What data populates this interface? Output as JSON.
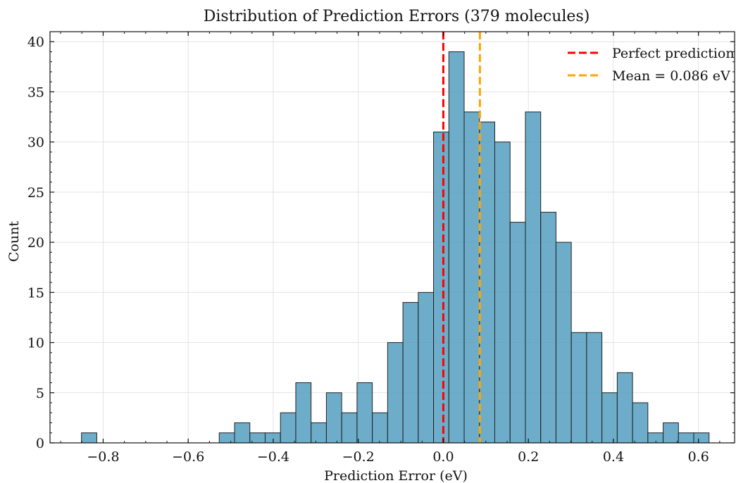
{
  "chart_data": {
    "type": "bar",
    "title": "Distribution of Prediction Errors (379 molecules)",
    "xlabel": "Prediction Error (eV)",
    "ylabel": "Count",
    "xlim": [
      -0.925,
      0.685
    ],
    "ylim": [
      0,
      41
    ],
    "xticks": [
      -0.8,
      -0.6,
      -0.4,
      -0.2,
      0.0,
      0.2,
      0.4,
      0.6
    ],
    "xtick_labels": [
      "−0.8",
      "−0.6",
      "−0.4",
      "−0.2",
      "0.0",
      "0.2",
      "0.4",
      "0.6"
    ],
    "yticks": [
      0,
      5,
      10,
      15,
      20,
      25,
      30,
      35,
      40
    ],
    "ytick_labels": [
      "0",
      "5",
      "10",
      "15",
      "20",
      "25",
      "30",
      "35",
      "40"
    ],
    "grid": true,
    "bin_edges": [
      -0.851,
      -0.815,
      -0.779,
      -0.743,
      -0.707,
      -0.671,
      -0.635,
      -0.599,
      -0.563,
      -0.527,
      -0.491,
      -0.455,
      -0.419,
      -0.383,
      -0.347,
      -0.311,
      -0.275,
      -0.239,
      -0.203,
      -0.167,
      -0.131,
      -0.095,
      -0.059,
      -0.023,
      0.013,
      0.049,
      0.085,
      0.121,
      0.157,
      0.193,
      0.229,
      0.265,
      0.301,
      0.337,
      0.373,
      0.409,
      0.445,
      0.481,
      0.517,
      0.553,
      0.589,
      0.625
    ],
    "counts": [
      1,
      0,
      0,
      0,
      0,
      0,
      0,
      0,
      0,
      1,
      2,
      1,
      1,
      3,
      6,
      2,
      5,
      3,
      6,
      3,
      10,
      14,
      15,
      31,
      39,
      33,
      32,
      30,
      22,
      33,
      23,
      20,
      11,
      11,
      5,
      7,
      4,
      1,
      2,
      1,
      1
    ],
    "bar_color": "#4d9bbd",
    "vlines": [
      {
        "name": "Perfect prediction",
        "x": 0.0,
        "color": "#ff0000",
        "style": "dashed"
      },
      {
        "name": "Mean = 0.086 eV",
        "x": 0.086,
        "color": "#ffa500",
        "style": "dashed"
      }
    ],
    "legend_position": "top-right"
  }
}
